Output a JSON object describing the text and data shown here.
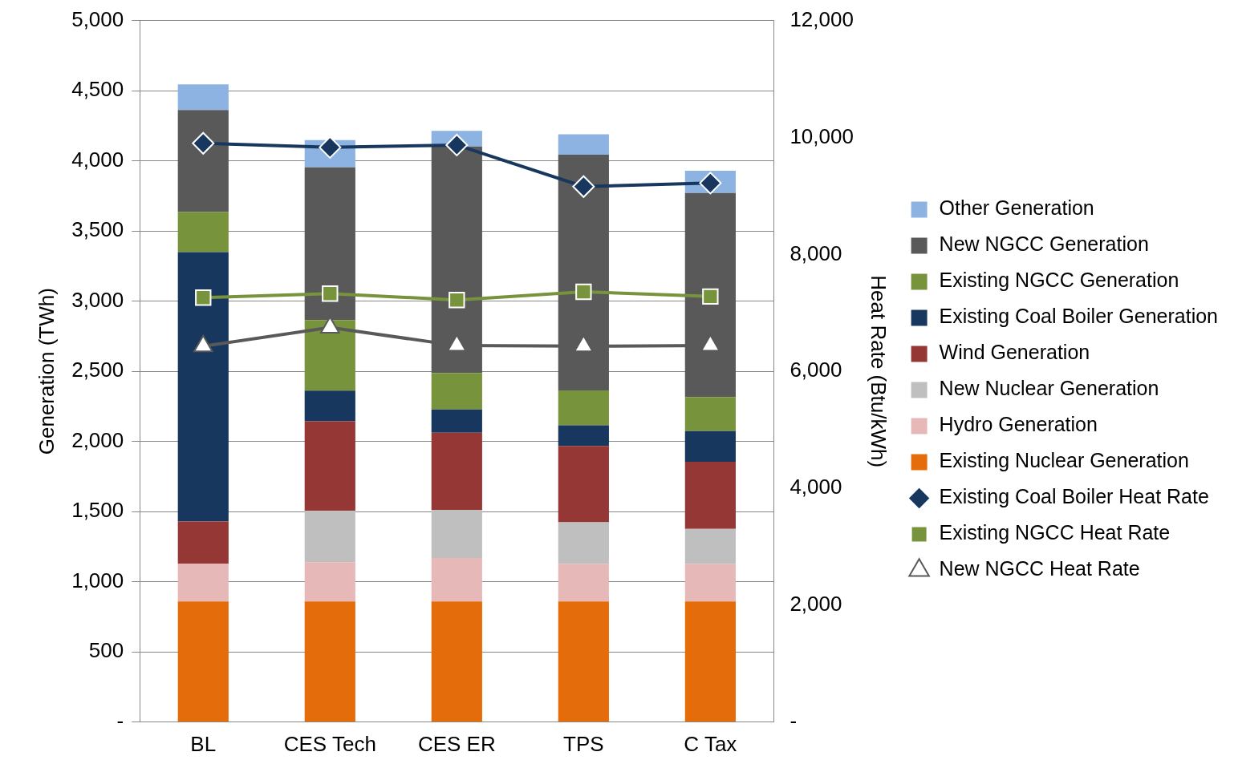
{
  "chart_data": {
    "type": "bar",
    "stacked": true,
    "categories": [
      "BL",
      "CES Tech",
      "CES ER",
      "TPS",
      "C Tax"
    ],
    "ylabel": "Generation (TWh)",
    "y2label": "Heat Rate (Btu/kWh)",
    "ylim": [
      0,
      5000
    ],
    "yticks": [
      {
        "value": 0,
        "label": "-"
      },
      {
        "value": 500,
        "label": "500"
      },
      {
        "value": 1000,
        "label": "1,000"
      },
      {
        "value": 1500,
        "label": "1,500"
      },
      {
        "value": 2000,
        "label": "2,000"
      },
      {
        "value": 2500,
        "label": "2,500"
      },
      {
        "value": 3000,
        "label": "3,000"
      },
      {
        "value": 3500,
        "label": "3,500"
      },
      {
        "value": 4000,
        "label": "4,000"
      },
      {
        "value": 4500,
        "label": "4,500"
      },
      {
        "value": 5000,
        "label": "5,000"
      }
    ],
    "y2lim": [
      0,
      12000
    ],
    "y2ticks": [
      {
        "value": 0,
        "label": "-"
      },
      {
        "value": 2000,
        "label": "2,000"
      },
      {
        "value": 4000,
        "label": "4,000"
      },
      {
        "value": 6000,
        "label": "6,000"
      },
      {
        "value": 8000,
        "label": "8,000"
      },
      {
        "value": 10000,
        "label": "10,000"
      },
      {
        "value": 12000,
        "label": "12,000"
      }
    ],
    "grid": "y",
    "legend": "right",
    "series": [
      {
        "name": "Existing Nuclear Generation",
        "color": "#e46c0a",
        "values": [
          860,
          860,
          860,
          860,
          860
        ]
      },
      {
        "name": "Hydro Generation",
        "color": "#e6b9b8",
        "values": [
          270,
          280,
          310,
          269,
          269
        ]
      },
      {
        "name": "New Nuclear Generation",
        "color": "#bfbfbf",
        "values": [
          0,
          366,
          343,
          295,
          248
        ]
      },
      {
        "name": "Wind Generation",
        "color": "#953735",
        "values": [
          300,
          638,
          550,
          544,
          479
        ]
      },
      {
        "name": "Existing Coal Boiler Generation",
        "color": "#17375e",
        "values": [
          1920,
          219,
          165,
          148,
          218
        ]
      },
      {
        "name": "Existing NGCC Generation",
        "color": "#77933c",
        "values": [
          285,
          502,
          260,
          248,
          243
        ]
      },
      {
        "name": "New NGCC Generation",
        "color": "#595959",
        "values": [
          727,
          1088,
          1614,
          1679,
          1454
        ]
      },
      {
        "name": "Other Generation",
        "color": "#8db3e2",
        "values": [
          183,
          195,
          112,
          147,
          159
        ]
      },
      {
        "name": "Existing Coal Boiler Heat Rate",
        "type": "line",
        "axis": "y2",
        "marker": "diamond",
        "color": "#17375e",
        "values": [
          9900,
          9830,
          9870,
          9160,
          9220
        ]
      },
      {
        "name": "Existing NGCC Heat Rate",
        "type": "line",
        "axis": "y2",
        "marker": "square",
        "color": "#77933c",
        "values": [
          7260,
          7330,
          7220,
          7360,
          7280
        ]
      },
      {
        "name": "New NGCC Heat Rate",
        "type": "line",
        "axis": "y2",
        "marker": "triangle",
        "color": "#595959",
        "values": [
          6430,
          6750,
          6440,
          6430,
          6440
        ]
      }
    ]
  }
}
